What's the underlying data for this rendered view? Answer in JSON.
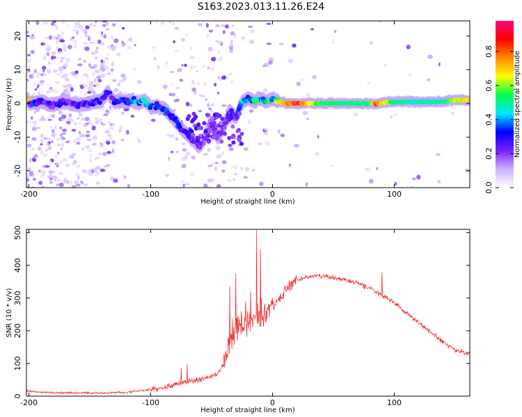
{
  "title": "S163.2023.013.11.26.E24",
  "chart_data": [
    {
      "type": "heatmap",
      "xlabel": "Height of straight line (km)",
      "ylabel": "Frequency (Hz)",
      "xlim": [
        -202,
        162
      ],
      "ylim": [
        -25,
        24.5
      ],
      "xticks": [
        -200,
        -100,
        0,
        100
      ],
      "yticks": [
        -20,
        -10,
        0,
        10,
        20
      ],
      "grid": false,
      "colorbar": {
        "label": "Normalized spectral amplitude",
        "range": [
          0,
          0.98
        ],
        "ticks": [
          "0.0",
          "0.2",
          "0.4",
          "0.6",
          "0.8"
        ],
        "tick_values": [
          0.0,
          0.2,
          0.4,
          0.6,
          0.8
        ],
        "colors": [
          "#ffffff",
          "#cdb1ff",
          "#7a1fff",
          "#0000ff",
          "#00e8ff",
          "#00ff4c",
          "#ffff00",
          "#ff8800",
          "#ff0000",
          "#ff0080"
        ]
      },
      "ridge": [
        {
          "x": -200,
          "f": 0.0,
          "a": 0.35
        },
        {
          "x": -190,
          "f": 0.5,
          "a": 0.3
        },
        {
          "x": -180,
          "f": -0.5,
          "a": 0.3
        },
        {
          "x": -170,
          "f": 0.5,
          "a": 0.3
        },
        {
          "x": -160,
          "f": -0.5,
          "a": 0.28
        },
        {
          "x": -150,
          "f": 0.0,
          "a": 0.3
        },
        {
          "x": -140,
          "f": 1.0,
          "a": 0.3
        },
        {
          "x": -135,
          "f": 3.5,
          "a": 0.28
        },
        {
          "x": -130,
          "f": 0.5,
          "a": 0.3
        },
        {
          "x": -125,
          "f": 1.0,
          "a": 0.38
        },
        {
          "x": -120,
          "f": 0.5,
          "a": 0.4
        },
        {
          "x": -115,
          "f": 1.0,
          "a": 0.42
        },
        {
          "x": -110,
          "f": 0.0,
          "a": 0.42
        },
        {
          "x": -105,
          "f": 1.0,
          "a": 0.45
        },
        {
          "x": -100,
          "f": -1.0,
          "a": 0.45
        },
        {
          "x": -95,
          "f": -1.0,
          "a": 0.42
        },
        {
          "x": -90,
          "f": -1.5,
          "a": 0.38
        },
        {
          "x": -85,
          "f": -3.0,
          "a": 0.38
        },
        {
          "x": -80,
          "f": -5.0,
          "a": 0.35
        },
        {
          "x": -75,
          "f": -7.5,
          "a": 0.35
        },
        {
          "x": -70,
          "f": -9.0,
          "a": 0.32
        },
        {
          "x": -65,
          "f": -11.0,
          "a": 0.3
        },
        {
          "x": -60,
          "f": -13.0,
          "a": 0.28
        },
        {
          "x": -55,
          "f": -10.0,
          "a": 0.25
        },
        {
          "x": -50,
          "f": -6.0,
          "a": 0.25
        },
        {
          "x": -45,
          "f": -10.0,
          "a": 0.28
        },
        {
          "x": -40,
          "f": -7.0,
          "a": 0.28
        },
        {
          "x": -35,
          "f": -2.0,
          "a": 0.3
        },
        {
          "x": -30,
          "f": -4.5,
          "a": 0.36
        },
        {
          "x": -25,
          "f": 0.5,
          "a": 0.42
        },
        {
          "x": -20,
          "f": 1.5,
          "a": 0.48
        },
        {
          "x": -15,
          "f": 0.5,
          "a": 0.55
        },
        {
          "x": -10,
          "f": 1.5,
          "a": 0.55
        },
        {
          "x": -5,
          "f": 0.5,
          "a": 0.6
        },
        {
          "x": 0,
          "f": 1.5,
          "a": 0.55
        },
        {
          "x": 5,
          "f": 0.5,
          "a": 0.68
        },
        {
          "x": 10,
          "f": 0.0,
          "a": 0.72
        },
        {
          "x": 20,
          "f": 0.0,
          "a": 0.85
        },
        {
          "x": 40,
          "f": 0.0,
          "a": 0.55
        },
        {
          "x": 60,
          "f": 0.0,
          "a": 0.52
        },
        {
          "x": 80,
          "f": 0.0,
          "a": 0.55
        },
        {
          "x": 85,
          "f": 0.0,
          "a": 0.82
        },
        {
          "x": 100,
          "f": 0.5,
          "a": 0.52
        },
        {
          "x": 120,
          "f": 0.5,
          "a": 0.48
        },
        {
          "x": 140,
          "f": 0.5,
          "a": 0.5
        },
        {
          "x": 150,
          "f": 1.0,
          "a": 0.62
        },
        {
          "x": 160,
          "f": 1.0,
          "a": 0.7
        }
      ]
    },
    {
      "type": "line",
      "xlabel": "Height of straight line (km)",
      "ylabel": "SNR (10 * v/v)",
      "xlim": [
        -202,
        162
      ],
      "ylim": [
        0,
        510
      ],
      "xticks": [
        -200,
        -100,
        0,
        100
      ],
      "yticks": [
        0,
        100,
        200,
        300,
        400,
        500
      ],
      "grid": false,
      "color": "#ee3333",
      "x": [
        -202,
        -190,
        -180,
        -160,
        -140,
        -120,
        -100,
        -90,
        -80,
        -70,
        -60,
        -50,
        -45,
        -40,
        -35,
        -30,
        -25,
        -20,
        -15,
        -10,
        -5,
        0,
        5,
        10,
        15,
        20,
        30,
        40,
        50,
        60,
        70,
        80,
        90,
        100,
        110,
        120,
        130,
        140,
        150,
        162
      ],
      "y": [
        15,
        12,
        10,
        10,
        10,
        12,
        20,
        25,
        35,
        45,
        50,
        60,
        70,
        100,
        160,
        200,
        220,
        230,
        240,
        250,
        260,
        275,
        295,
        320,
        340,
        355,
        365,
        368,
        362,
        355,
        345,
        330,
        310,
        285,
        255,
        225,
        195,
        165,
        140,
        130
      ],
      "peaks": [
        {
          "x": -75,
          "y": 85
        },
        {
          "x": -70,
          "y": 98
        },
        {
          "x": -35,
          "y": 335
        },
        {
          "x": -30,
          "y": 375
        },
        {
          "x": -22,
          "y": 290
        },
        {
          "x": -18,
          "y": 320
        },
        {
          "x": -13,
          "y": 508
        },
        {
          "x": -10,
          "y": 450
        },
        {
          "x": 0,
          "y": 300
        },
        {
          "x": 90,
          "y": 380
        }
      ]
    }
  ]
}
